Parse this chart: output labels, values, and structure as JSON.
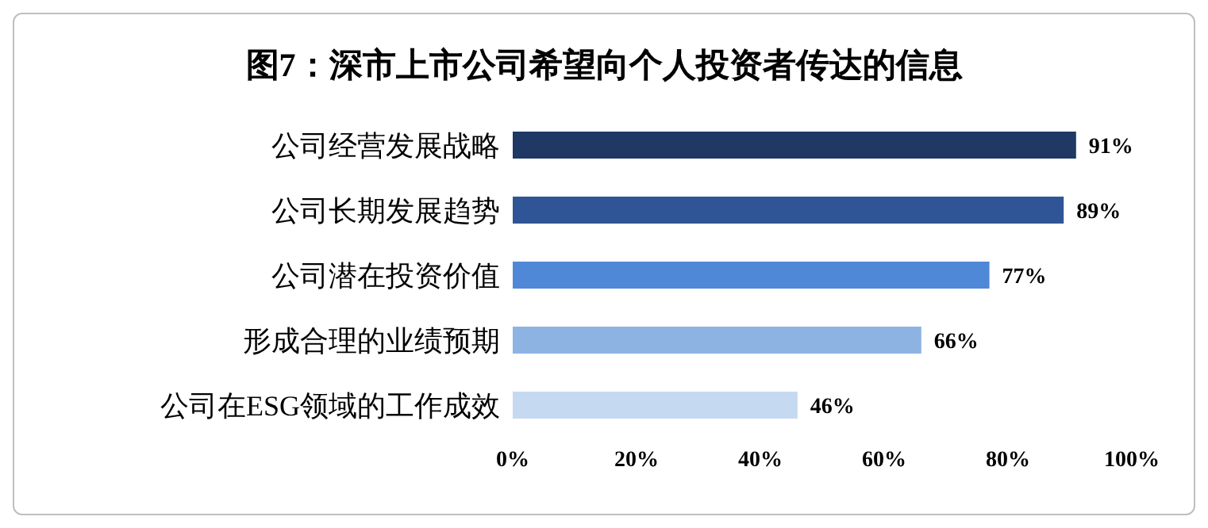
{
  "chart_data": {
    "type": "bar",
    "orientation": "horizontal",
    "title": "图7：深市上市公司希望向个人投资者传达的信息",
    "categories": [
      "公司经营发展战略",
      "公司长期发展趋势",
      "公司潜在投资价值",
      "形成合理的业绩预期",
      "公司在ESG领域的工作成效"
    ],
    "values": [
      91,
      89,
      77,
      66,
      46
    ],
    "colors": [
      "#1f3864",
      "#2f5597",
      "#4f88d6",
      "#8db3e2",
      "#c5d9f1"
    ],
    "value_labels": [
      "91%",
      "89%",
      "77%",
      "66%",
      "46%"
    ],
    "xlim": [
      0,
      100
    ],
    "xticks": [
      {
        "value": 0,
        "label": "0%"
      },
      {
        "value": 20,
        "label": "20%"
      },
      {
        "value": 40,
        "label": "40%"
      },
      {
        "value": 60,
        "label": "60%"
      },
      {
        "value": 80,
        "label": "80%"
      },
      {
        "value": 100,
        "label": "100%"
      }
    ],
    "grid": false,
    "legend": false
  }
}
